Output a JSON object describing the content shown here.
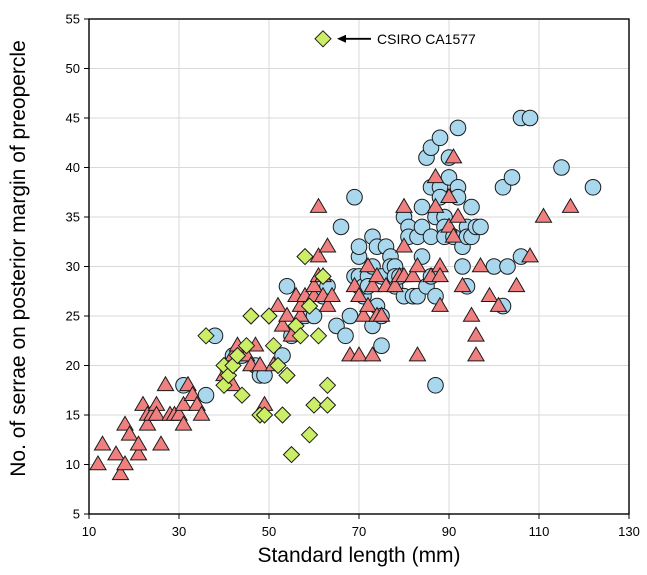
{
  "chart_data": {
    "type": "scatter",
    "title": "",
    "xlabel": "Standard length (mm)",
    "ylabel": "No. of serrae on posterior margin of preopercle",
    "xlim": [
      10,
      130
    ],
    "ylim": [
      5,
      55
    ],
    "xticks": [
      10,
      30,
      50,
      70,
      90,
      110,
      130
    ],
    "yticks": [
      5,
      10,
      15,
      20,
      25,
      30,
      35,
      40,
      45,
      50,
      55
    ],
    "grid": true,
    "legend": "none",
    "annotation": {
      "text": "CSIRO CA1577",
      "x": 62,
      "y": 53
    },
    "series": [
      {
        "marker": "circle",
        "color": "#a9d8ee",
        "points": [
          [
            31,
            18
          ],
          [
            36,
            17
          ],
          [
            38,
            23
          ],
          [
            42,
            21
          ],
          [
            44,
            21
          ],
          [
            47,
            20
          ],
          [
            48,
            19
          ],
          [
            49,
            19
          ],
          [
            53,
            21
          ],
          [
            54,
            28
          ],
          [
            55,
            23
          ],
          [
            58,
            25
          ],
          [
            60,
            25
          ],
          [
            62,
            27
          ],
          [
            63,
            28
          ],
          [
            65,
            24
          ],
          [
            66,
            34
          ],
          [
            67,
            23
          ],
          [
            68,
            25
          ],
          [
            69,
            29
          ],
          [
            69,
            37
          ],
          [
            70,
            28
          ],
          [
            70,
            31
          ],
          [
            70,
            32
          ],
          [
            70,
            29
          ],
          [
            71,
            27
          ],
          [
            71,
            28
          ],
          [
            72,
            29
          ],
          [
            72,
            28
          ],
          [
            73,
            30
          ],
          [
            73,
            33
          ],
          [
            73,
            24
          ],
          [
            74,
            26
          ],
          [
            74,
            32
          ],
          [
            75,
            29
          ],
          [
            75,
            22
          ],
          [
            75,
            25
          ],
          [
            76,
            32
          ],
          [
            77,
            31
          ],
          [
            77,
            30
          ],
          [
            78,
            28
          ],
          [
            78,
            30
          ],
          [
            78,
            29
          ],
          [
            79,
            29
          ],
          [
            80,
            35
          ],
          [
            80,
            27
          ],
          [
            81,
            34
          ],
          [
            81,
            33
          ],
          [
            82,
            27
          ],
          [
            83,
            27
          ],
          [
            83,
            33
          ],
          [
            84,
            34
          ],
          [
            84,
            31
          ],
          [
            84,
            36
          ],
          [
            85,
            28
          ],
          [
            85,
            41
          ],
          [
            86,
            38
          ],
          [
            86,
            42
          ],
          [
            86,
            33
          ],
          [
            86,
            29
          ],
          [
            87,
            35
          ],
          [
            87,
            27
          ],
          [
            87,
            18
          ],
          [
            88,
            38
          ],
          [
            88,
            43
          ],
          [
            88,
            37
          ],
          [
            89,
            35
          ],
          [
            89,
            34
          ],
          [
            89,
            33
          ],
          [
            90,
            39
          ],
          [
            90,
            41
          ],
          [
            91,
            33
          ],
          [
            92,
            44
          ],
          [
            92,
            38
          ],
          [
            92,
            37
          ],
          [
            93,
            30
          ],
          [
            93,
            32
          ],
          [
            94,
            34
          ],
          [
            94,
            33
          ],
          [
            94,
            28
          ],
          [
            95,
            36
          ],
          [
            95,
            33
          ],
          [
            96,
            34
          ],
          [
            97,
            34
          ],
          [
            100,
            30
          ],
          [
            102,
            26
          ],
          [
            102,
            38
          ],
          [
            103,
            30
          ],
          [
            104,
            39
          ],
          [
            106,
            31
          ],
          [
            106,
            45
          ],
          [
            108,
            45
          ],
          [
            115,
            40
          ],
          [
            122,
            38
          ]
        ]
      },
      {
        "marker": "triangle",
        "color": "#f08080",
        "points": [
          [
            12,
            10
          ],
          [
            13,
            12
          ],
          [
            16,
            11
          ],
          [
            17,
            9
          ],
          [
            18,
            10
          ],
          [
            18,
            14
          ],
          [
            19,
            13
          ],
          [
            21,
            11
          ],
          [
            21,
            12
          ],
          [
            22,
            16
          ],
          [
            23,
            15
          ],
          [
            23,
            14
          ],
          [
            24,
            15
          ],
          [
            25,
            16
          ],
          [
            25,
            15
          ],
          [
            26,
            12
          ],
          [
            27,
            18
          ],
          [
            28,
            15
          ],
          [
            29,
            15
          ],
          [
            30,
            15
          ],
          [
            31,
            16
          ],
          [
            31,
            14
          ],
          [
            32,
            18
          ],
          [
            33,
            17
          ],
          [
            34,
            16
          ],
          [
            35,
            15
          ],
          [
            40,
            19
          ],
          [
            41,
            20
          ],
          [
            42,
            21
          ],
          [
            42,
            18
          ],
          [
            43,
            22
          ],
          [
            45,
            21
          ],
          [
            46,
            20
          ],
          [
            47,
            22
          ],
          [
            48,
            20
          ],
          [
            49,
            16
          ],
          [
            51,
            20
          ],
          [
            52,
            26
          ],
          [
            53,
            24
          ],
          [
            54,
            25
          ],
          [
            55,
            23
          ],
          [
            56,
            27
          ],
          [
            57,
            25
          ],
          [
            57,
            26
          ],
          [
            58,
            27
          ],
          [
            60,
            27
          ],
          [
            60,
            28
          ],
          [
            61,
            29
          ],
          [
            61,
            31
          ],
          [
            61,
            36
          ],
          [
            62,
            29
          ],
          [
            62,
            27
          ],
          [
            63,
            26
          ],
          [
            63,
            32
          ],
          [
            64,
            27
          ],
          [
            68,
            21
          ],
          [
            69,
            28
          ],
          [
            70,
            21
          ],
          [
            70,
            27
          ],
          [
            71,
            25
          ],
          [
            72,
            26
          ],
          [
            72,
            30
          ],
          [
            73,
            28
          ],
          [
            73,
            21
          ],
          [
            74,
            25
          ],
          [
            74,
            29
          ],
          [
            75,
            25
          ],
          [
            76,
            28
          ],
          [
            78,
            28
          ],
          [
            79,
            29
          ],
          [
            80,
            36
          ],
          [
            80,
            29
          ],
          [
            80,
            32
          ],
          [
            82,
            29
          ],
          [
            83,
            21
          ],
          [
            83,
            30
          ],
          [
            86,
            29
          ],
          [
            87,
            36
          ],
          [
            87,
            39
          ],
          [
            88,
            26
          ],
          [
            88,
            30
          ],
          [
            88,
            29
          ],
          [
            90,
            34
          ],
          [
            90,
            37
          ],
          [
            91,
            33
          ],
          [
            91,
            41
          ],
          [
            92,
            35
          ],
          [
            93,
            28
          ],
          [
            95,
            25
          ],
          [
            96,
            23
          ],
          [
            96,
            21
          ],
          [
            97,
            30
          ],
          [
            99,
            27
          ],
          [
            101,
            26
          ],
          [
            105,
            28
          ],
          [
            108,
            31
          ],
          [
            111,
            35
          ],
          [
            117,
            36
          ]
        ]
      },
      {
        "marker": "diamond",
        "color": "#ccee66",
        "points": [
          [
            36,
            23
          ],
          [
            40,
            18
          ],
          [
            40,
            20
          ],
          [
            41,
            19
          ],
          [
            42,
            20
          ],
          [
            43,
            21
          ],
          [
            44,
            17
          ],
          [
            45,
            22
          ],
          [
            46,
            25
          ],
          [
            48,
            15
          ],
          [
            49,
            15
          ],
          [
            50,
            25
          ],
          [
            51,
            22
          ],
          [
            52,
            20
          ],
          [
            53,
            15
          ],
          [
            54,
            19
          ],
          [
            55,
            11
          ],
          [
            56,
            24
          ],
          [
            57,
            23
          ],
          [
            58,
            31
          ],
          [
            59,
            26
          ],
          [
            59,
            13
          ],
          [
            60,
            16
          ],
          [
            61,
            23
          ],
          [
            62,
            29
          ],
          [
            63,
            18
          ],
          [
            63,
            16
          ],
          [
            62,
            53
          ]
        ]
      }
    ]
  }
}
